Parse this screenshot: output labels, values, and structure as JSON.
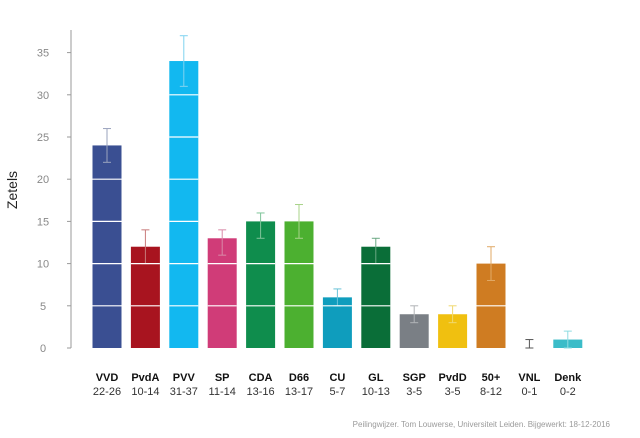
{
  "chart_data": {
    "type": "bar",
    "title": "",
    "xlabel": "",
    "ylabel": "Zetels",
    "ylim": [
      0,
      38
    ],
    "yticks": [
      0,
      5,
      10,
      15,
      20,
      25,
      30,
      35
    ],
    "grid": "white lines inside bars",
    "categories": [
      "VVD",
      "PvdA",
      "PVV",
      "SP",
      "CDA",
      "D66",
      "CU",
      "GL",
      "SGP",
      "PvdD",
      "50+",
      "VNL",
      "Denk"
    ],
    "ranges": [
      "22-26",
      "10-14",
      "31-37",
      "11-14",
      "13-16",
      "13-17",
      "5-7",
      "10-13",
      "3-5",
      "3-5",
      "8-12",
      "0-1",
      "0-2"
    ],
    "values": [
      24,
      12,
      34,
      13,
      15,
      15,
      6,
      12,
      4,
      4,
      10,
      0,
      1
    ],
    "error_low": [
      22,
      10,
      31,
      11,
      13,
      13,
      5,
      10,
      3,
      3,
      8,
      0,
      0
    ],
    "error_high": [
      26,
      14,
      37,
      14,
      16,
      17,
      7,
      13,
      5,
      5,
      12,
      1,
      2
    ],
    "colors": [
      "#3a4f92",
      "#a8141f",
      "#12b8f0",
      "#d03c78",
      "#0f8d4d",
      "#4cb030",
      "#0f9dbd",
      "#0a6e38",
      "#7a7f85",
      "#f0c010",
      "#cf7c22",
      "#555555",
      "#3bbcc8"
    ],
    "error_colors": [
      "#9aa3bd",
      "#c87a7a",
      "#7fd3f0",
      "#d98aa8",
      "#7fc49a",
      "#a8d38a",
      "#6ac3d8",
      "#6aa882",
      "#b0b3b6",
      "#f0d870",
      "#e0aa66",
      "#555555",
      "#8fdce2"
    ]
  },
  "credit": "Peilingwijzer. Tom Louwerse, Universiteit Leiden. Bijgewerkt: 18-12-2016"
}
